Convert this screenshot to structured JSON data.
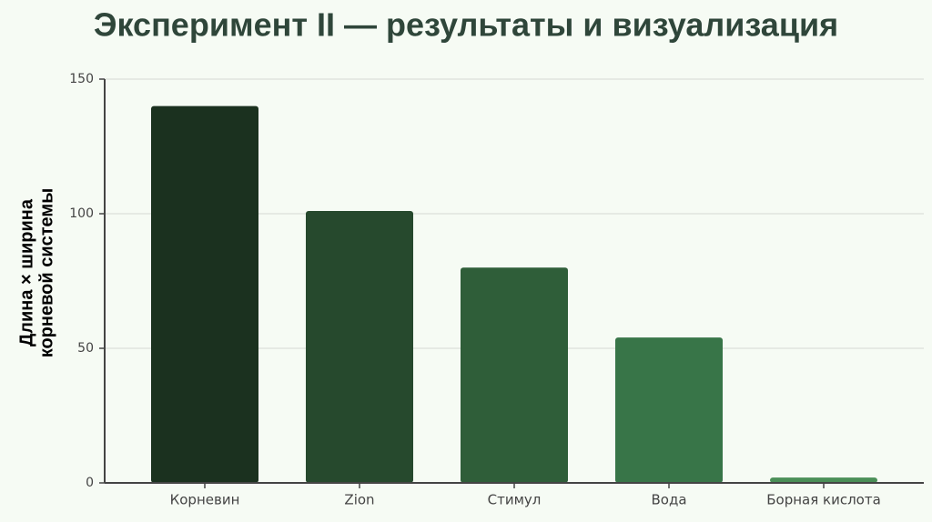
{
  "chart_data": {
    "type": "bar",
    "title": "Эксперимент II — результаты и визуализация",
    "ylabel": [
      "Длина × ширина",
      "корневой системы"
    ],
    "categories": [
      "Корневин",
      "Zion",
      "Стимул",
      "Вода",
      "Борная кислота"
    ],
    "values": [
      140,
      101,
      80,
      54,
      2
    ],
    "colors": [
      "#1b311f",
      "#26492d",
      "#2f5e39",
      "#387548",
      "#4a8f57"
    ],
    "ylim": [
      0,
      150
    ],
    "yticks": [
      0,
      50,
      100,
      150
    ],
    "grid": true
  }
}
